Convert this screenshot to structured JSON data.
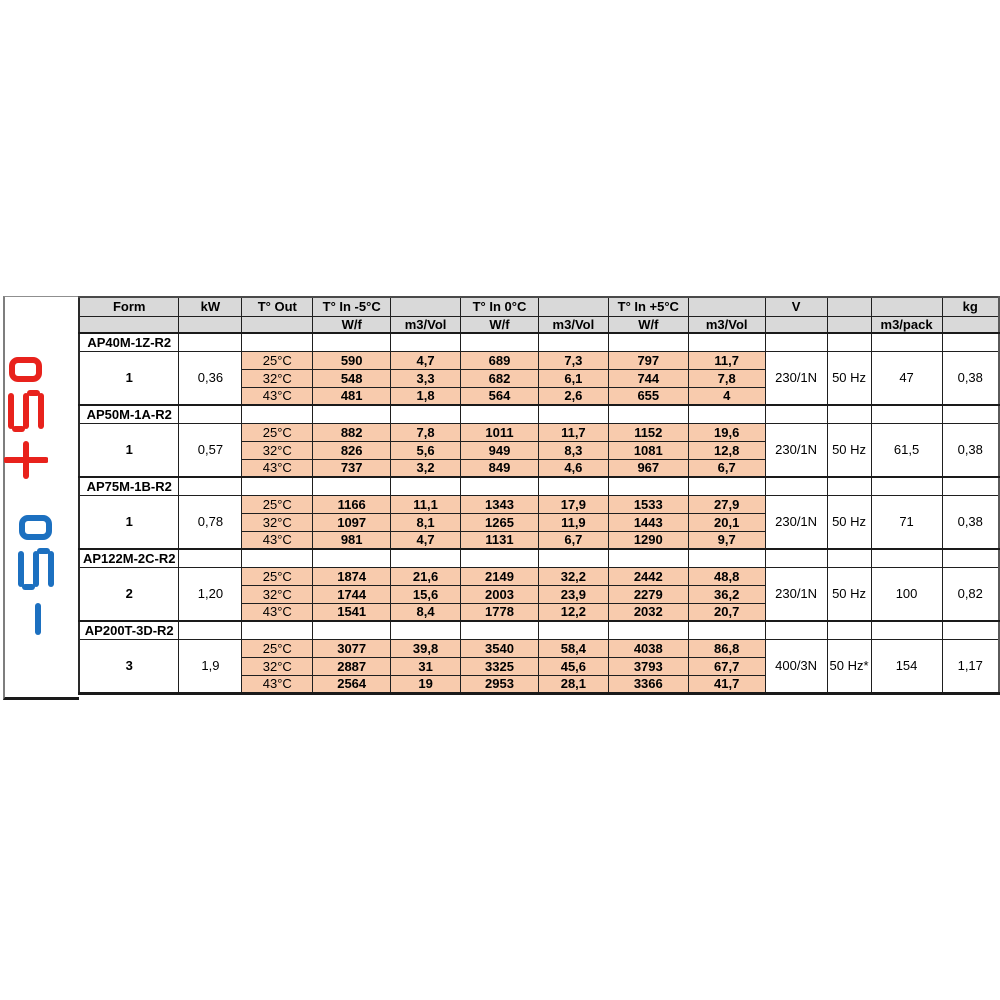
{
  "decorations": {
    "red_display": {
      "text": "+5°",
      "color": "#e8221c"
    },
    "blue_display": {
      "text": "-5°",
      "color": "#1c70c0"
    }
  },
  "table": {
    "colors": {
      "header_bg": "#d9d9d9",
      "highlight_bg": "#f8cbad"
    },
    "header_row1": [
      "Form",
      "kW",
      "T° Out",
      "T° In -5°C",
      "",
      "T° In 0°C",
      "",
      "T° In +5°C",
      "",
      "V",
      "",
      "",
      "kg"
    ],
    "header_row2": [
      "",
      "",
      "",
      "W/f",
      "m3/Vol",
      "W/f",
      "m3/Vol",
      "W/f",
      "m3/Vol",
      "",
      "",
      "m3/pack",
      ""
    ],
    "sections": [
      {
        "model": "AP40M-1Z-R2",
        "form": "1",
        "kw": "0,36",
        "rows": [
          {
            "t_out": "25°C",
            "values": [
              "590",
              "4,7",
              "689",
              "7,3",
              "797",
              "11,7"
            ]
          },
          {
            "t_out": "32°C",
            "values": [
              "548",
              "3,3",
              "682",
              "6,1",
              "744",
              "7,8"
            ]
          },
          {
            "t_out": "43°C",
            "values": [
              "481",
              "1,8",
              "564",
              "2,6",
              "655",
              "4"
            ]
          }
        ],
        "v": "230/1N",
        "hz": "50 Hz",
        "m3_pack": "47",
        "kg": "0,38"
      },
      {
        "model": "AP50M-1A-R2",
        "form": "1",
        "kw": "0,57",
        "rows": [
          {
            "t_out": "25°C",
            "values": [
              "882",
              "7,8",
              "1011",
              "11,7",
              "1152",
              "19,6"
            ]
          },
          {
            "t_out": "32°C",
            "values": [
              "826",
              "5,6",
              "949",
              "8,3",
              "1081",
              "12,8"
            ]
          },
          {
            "t_out": "43°C",
            "values": [
              "737",
              "3,2",
              "849",
              "4,6",
              "967",
              "6,7"
            ]
          }
        ],
        "v": "230/1N",
        "hz": "50 Hz",
        "m3_pack": "61,5",
        "kg": "0,38"
      },
      {
        "model": "AP75M-1B-R2",
        "form": "1",
        "kw": "0,78",
        "rows": [
          {
            "t_out": "25°C",
            "values": [
              "1166",
              "11,1",
              "1343",
              "17,9",
              "1533",
              "27,9"
            ]
          },
          {
            "t_out": "32°C",
            "values": [
              "1097",
              "8,1",
              "1265",
              "11,9",
              "1443",
              "20,1"
            ]
          },
          {
            "t_out": "43°C",
            "values": [
              "981",
              "4,7",
              "1131",
              "6,7",
              "1290",
              "9,7"
            ]
          }
        ],
        "v": "230/1N",
        "hz": "50 Hz",
        "m3_pack": "71",
        "kg": "0,38"
      },
      {
        "model": "AP122M-2C-R2",
        "form": "2",
        "kw": "1,20",
        "rows": [
          {
            "t_out": "25°C",
            "values": [
              "1874",
              "21,6",
              "2149",
              "32,2",
              "2442",
              "48,8"
            ]
          },
          {
            "t_out": "32°C",
            "values": [
              "1744",
              "15,6",
              "2003",
              "23,9",
              "2279",
              "36,2"
            ]
          },
          {
            "t_out": "43°C",
            "values": [
              "1541",
              "8,4",
              "1778",
              "12,2",
              "2032",
              "20,7"
            ]
          }
        ],
        "v": "230/1N",
        "hz": "50 Hz",
        "m3_pack": "100",
        "kg": "0,82"
      },
      {
        "model": "AP200T-3D-R2",
        "form": "3",
        "kw": "1,9",
        "rows": [
          {
            "t_out": "25°C",
            "values": [
              "3077",
              "39,8",
              "3540",
              "58,4",
              "4038",
              "86,8"
            ]
          },
          {
            "t_out": "32°C",
            "values": [
              "2887",
              "31",
              "3325",
              "45,6",
              "3793",
              "67,7"
            ]
          },
          {
            "t_out": "43°C",
            "values": [
              "2564",
              "19",
              "2953",
              "28,1",
              "3366",
              "41,7"
            ]
          }
        ],
        "v": "400/3N",
        "hz": "50 Hz*",
        "m3_pack": "154",
        "kg": "1,17"
      }
    ]
  }
}
